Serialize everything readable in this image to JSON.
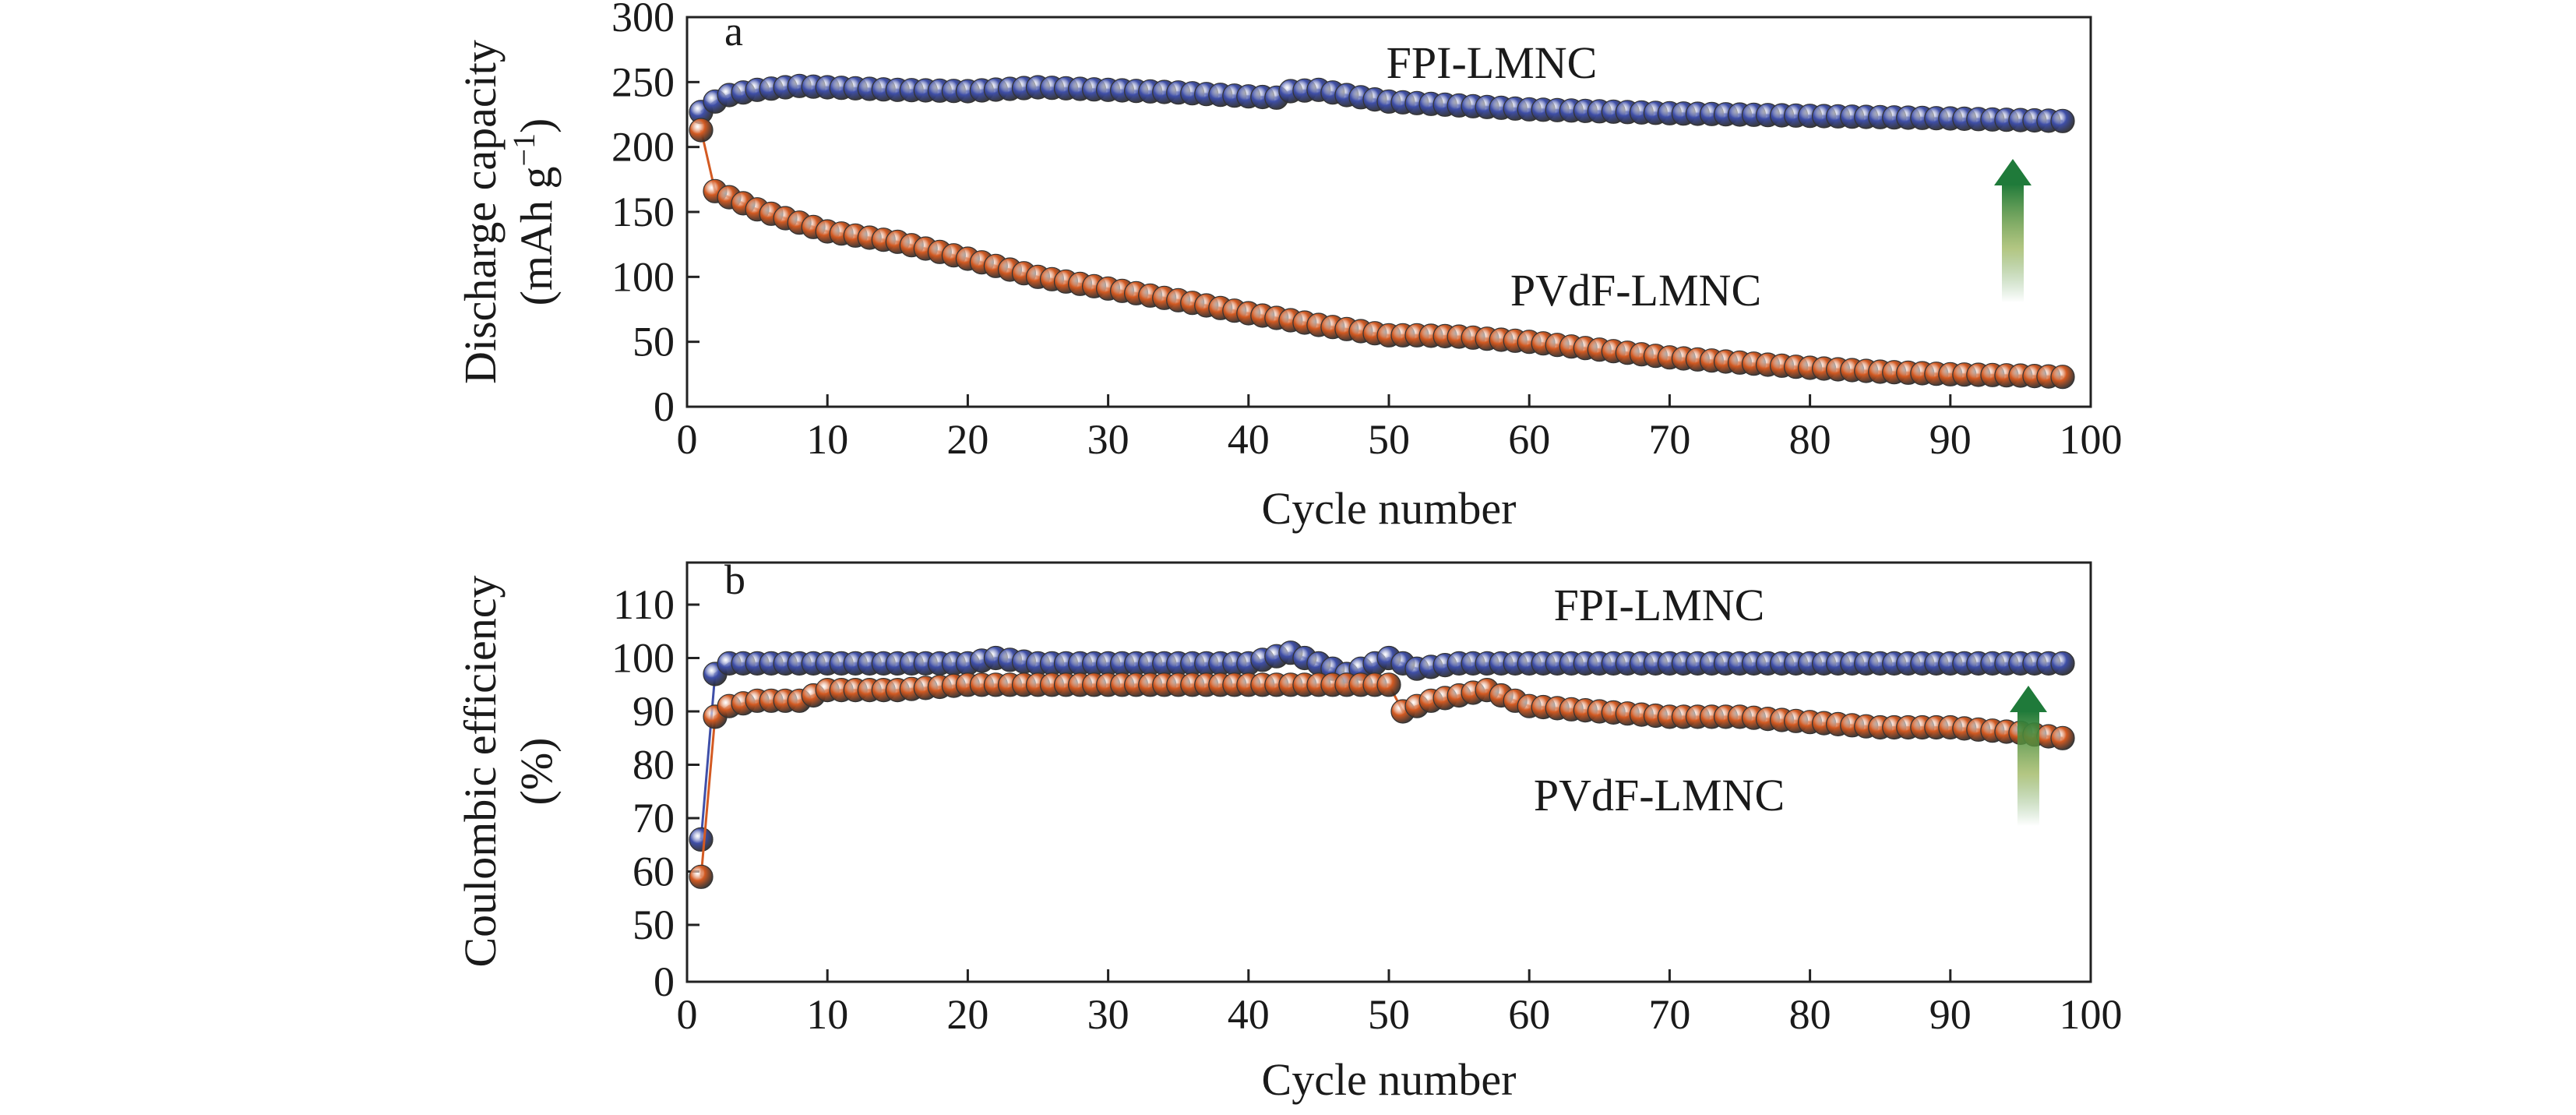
{
  "chart_data": [
    {
      "panel": "a",
      "type": "line",
      "xlabel": "Cycle number",
      "ylabel_line1": "Discharge capacity",
      "ylabel_line2_main": "(mAh g",
      "ylabel_line2_sup": "−1",
      "ylabel_line2_end": ")",
      "xlim": [
        0,
        100
      ],
      "ylim": [
        0,
        300
      ],
      "xticks": [
        0,
        10,
        20,
        30,
        40,
        50,
        60,
        70,
        80,
        90,
        100
      ],
      "yticks": [
        0,
        50,
        100,
        150,
        200,
        250,
        300
      ],
      "grid": false,
      "series": [
        {
          "name": "FPI-LMNC",
          "color": "#3f4fa8",
          "x": [
            1,
            2,
            3,
            5,
            8,
            10,
            15,
            20,
            25,
            30,
            35,
            40,
            42,
            43,
            45,
            47,
            50,
            55,
            60,
            70,
            80,
            90,
            98
          ],
          "y": [
            227,
            235,
            240,
            244,
            247,
            246,
            244,
            243,
            246,
            244,
            242,
            239,
            238,
            243,
            244,
            240,
            235,
            232,
            229,
            226,
            224,
            222,
            220
          ]
        },
        {
          "name": "PVdF-LMNC",
          "color": "#d35a22",
          "x": [
            1,
            2,
            5,
            10,
            15,
            20,
            25,
            30,
            35,
            40,
            45,
            50,
            52,
            55,
            60,
            65,
            70,
            75,
            80,
            85,
            90,
            95,
            98
          ],
          "y": [
            213,
            166,
            152,
            135,
            127,
            114,
            100,
            91,
            82,
            72,
            63,
            55,
            55,
            54,
            50,
            44,
            38,
            34,
            30,
            27,
            25,
            24,
            23
          ]
        }
      ]
    },
    {
      "panel": "b",
      "type": "line",
      "xlabel": "Cycle number",
      "ylabel_line1": "Coulombic efficiency",
      "ylabel_line2": "(%)",
      "xlim": [
        0,
        100
      ],
      "ylim": [
        0,
        115
      ],
      "y_axis_break": true,
      "xticks": [
        0,
        10,
        20,
        30,
        40,
        50,
        60,
        70,
        80,
        90,
        100
      ],
      "yticks": [
        0,
        50,
        60,
        70,
        80,
        90,
        100,
        110
      ],
      "grid": false,
      "series": [
        {
          "name": "FPI-LMNC",
          "color": "#3f4fa8",
          "x": [
            1,
            2,
            3,
            5,
            10,
            15,
            20,
            22,
            25,
            30,
            35,
            40,
            43,
            45,
            47,
            48,
            50,
            52,
            55,
            60,
            70,
            80,
            90,
            98
          ],
          "y": [
            66,
            97,
            99,
            99,
            99,
            99,
            99,
            100,
            99,
            99,
            99,
            99,
            101,
            99,
            97,
            98,
            100,
            98,
            99,
            99,
            99,
            99,
            99,
            99
          ]
        },
        {
          "name": "PVdF-LMNC",
          "color": "#d35a22",
          "x": [
            1,
            2,
            3,
            5,
            8,
            10,
            15,
            20,
            25,
            30,
            35,
            40,
            45,
            49,
            50,
            51,
            53,
            55,
            57,
            58,
            60,
            65,
            70,
            75,
            80,
            85,
            90,
            95,
            98
          ],
          "y": [
            59,
            89,
            91,
            92,
            92,
            94,
            94,
            95,
            95,
            95,
            95,
            95,
            95,
            95,
            95,
            90,
            92,
            93,
            94,
            93,
            91,
            90,
            89,
            89,
            88,
            87,
            87,
            86,
            85
          ]
        }
      ]
    }
  ]
}
